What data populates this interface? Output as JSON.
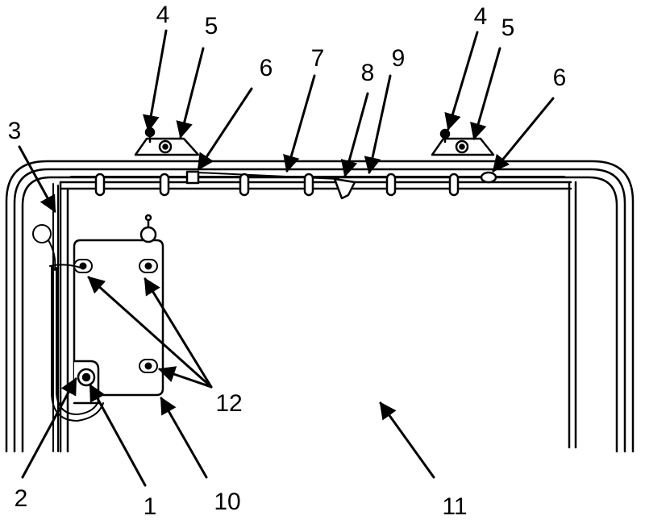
{
  "labels": {
    "l1": "1",
    "l2": "2",
    "l3": "3",
    "l4a": "4",
    "l5a": "5",
    "l4b": "4",
    "l5b": "5",
    "l6a": "6",
    "l6b": "6",
    "l7": "7",
    "l8": "8",
    "l9": "9",
    "l10": "10",
    "l11": "11",
    "l12": "12"
  },
  "colors": {
    "ink": "#000000",
    "paper": "#ffffff"
  }
}
